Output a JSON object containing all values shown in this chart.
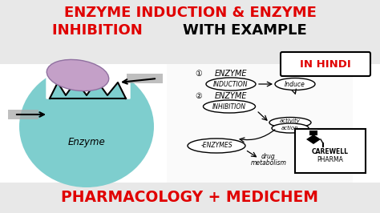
{
  "bg_color": "#f0f0f0",
  "title_line1_red": "ENZYME INDUCTION & ENZYME",
  "title_line2_red": "INHIBITION ",
  "title_line2_black": "WITH EXAMPLE",
  "bottom_text": "PHARMACOLOGY + MEDICHEM",
  "in_hindi_text": "IN HINDI",
  "enzyme_label": "Enzyme",
  "carewell_line1": "CAREWELL",
  "carewell_line2": "PHARMA",
  "title_bg": "#e8e8e8",
  "bottom_bg": "#e8e8e8",
  "main_bg": "#ffffff",
  "red_color": "#e00000",
  "teal_color": "#7ecece",
  "purple_color": "#c4a0c8"
}
